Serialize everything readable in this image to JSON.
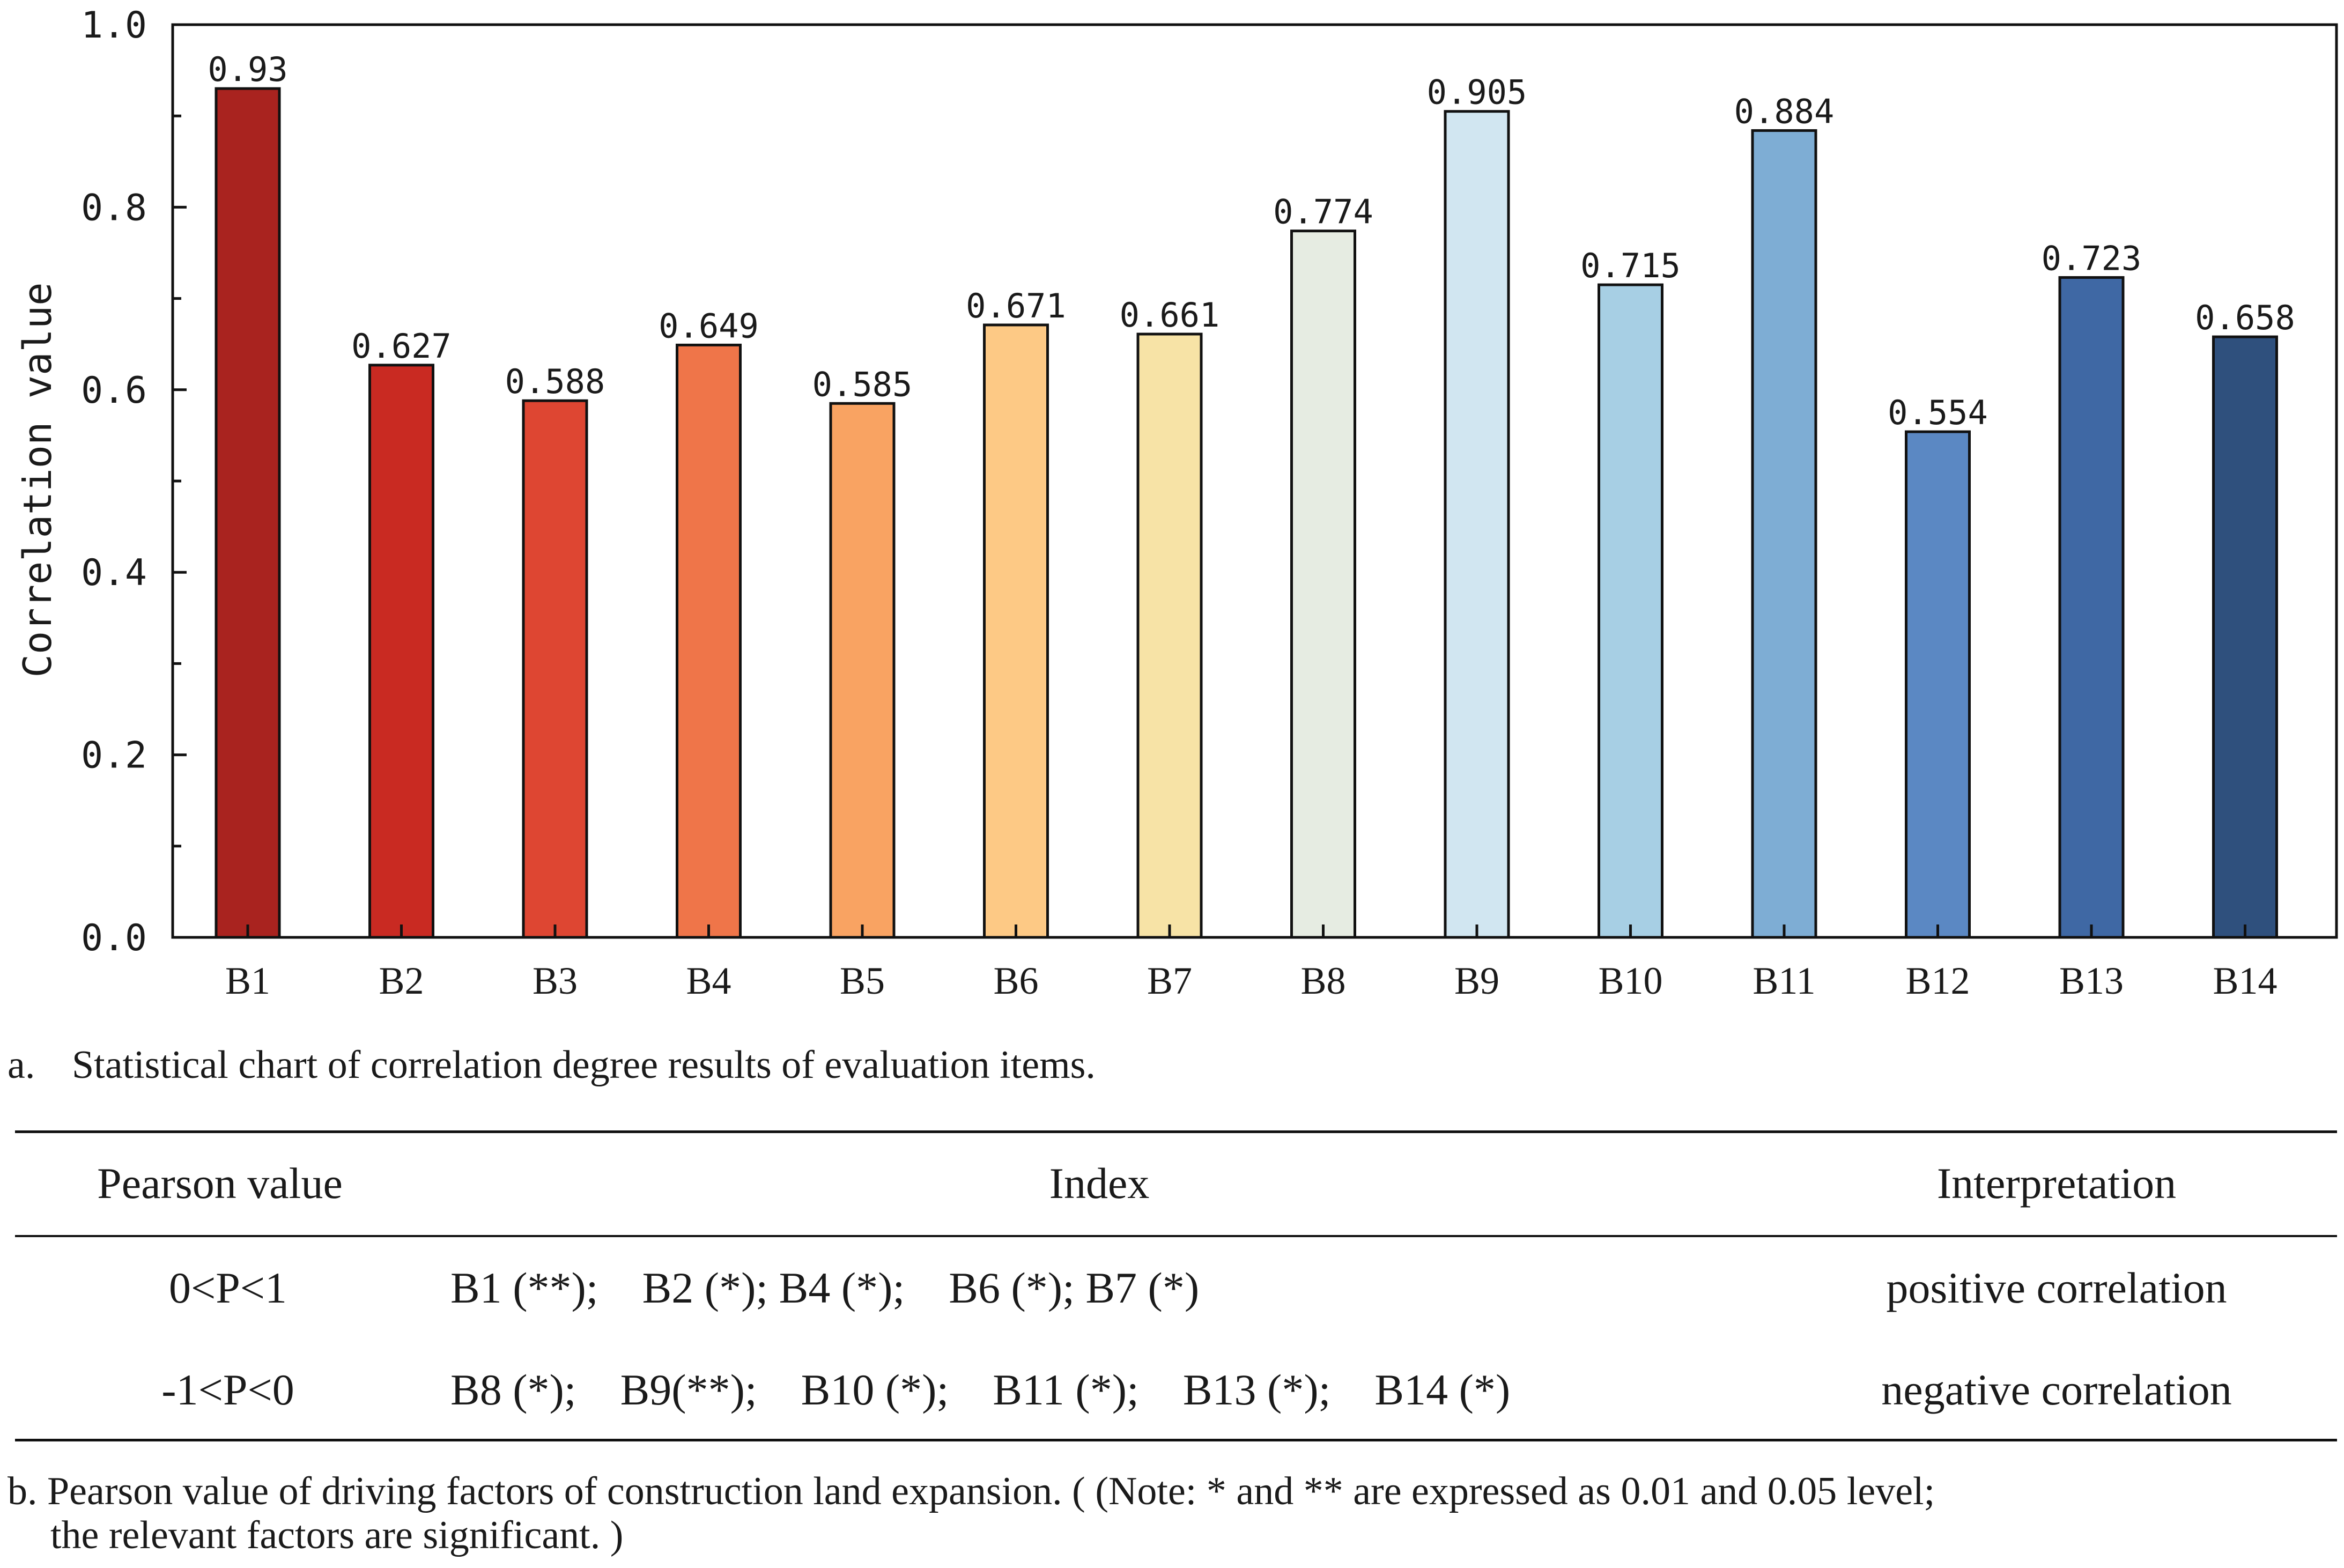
{
  "chart_data": {
    "type": "bar",
    "title": "",
    "xlabel": "",
    "ylabel": "Correlation value",
    "ylim": [
      0.0,
      1.0
    ],
    "yticks": [
      "0.0",
      "0.2",
      "0.4",
      "0.6",
      "0.8",
      "1.0"
    ],
    "categories": [
      "B1",
      "B2",
      "B3",
      "B4",
      "B5",
      "B6",
      "B7",
      "B8",
      "B9",
      "B10",
      "B11",
      "B12",
      "B13",
      "B14"
    ],
    "values": [
      0.93,
      0.627,
      0.588,
      0.649,
      0.585,
      0.671,
      0.661,
      0.774,
      0.905,
      0.715,
      0.884,
      0.554,
      0.723,
      0.658
    ],
    "value_labels": [
      "0.93",
      "0.627",
      "0.588",
      "0.649",
      "0.585",
      "0.671",
      "0.661",
      "0.774",
      "0.905",
      "0.715",
      "0.884",
      "0.554",
      "0.723",
      "0.658"
    ],
    "colors": [
      "#a9231f",
      "#c92a22",
      "#de4632",
      "#ef7549",
      "#f9a362",
      "#fdc985",
      "#f7e3a6",
      "#e6ece2",
      "#d1e6f1",
      "#a7cfe4",
      "#7eadd4",
      "#5b88c3",
      "#3f68a4",
      "#2f507d"
    ],
    "grid": false
  },
  "captions": {
    "a_letter": "a.",
    "a_text": "Statistical chart of correlation degree results of evaluation items.",
    "b_line1": "b. Pearson value of driving factors of construction land expansion. ( (Note: * and ** are expressed as 0.01 and 0.05 level;",
    "b_line2": "the relevant factors are significant. )"
  },
  "table": {
    "headers": {
      "pearson": "Pearson value",
      "index": "Index",
      "interpretation": "Interpretation"
    },
    "rows": [
      {
        "pearson": "0<P<1",
        "index": "B1 (**);    B2 (*); B4 (*);    B6 (*); B7 (*)",
        "interpretation": "positive correlation"
      },
      {
        "pearson": "-1<P<0",
        "index": "B8 (*);    B9(**);    B10 (*);    B11 (*);    B13 (*);    B14 (*)",
        "interpretation": "negative correlation"
      }
    ]
  }
}
